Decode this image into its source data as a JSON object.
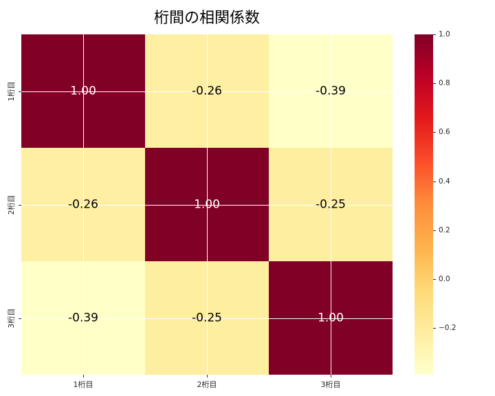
{
  "chart_data": {
    "type": "heatmap",
    "title": "桁間の相関係数",
    "x_categories": [
      "1桁目",
      "2桁目",
      "3桁目"
    ],
    "y_categories": [
      "1桁目",
      "2桁目",
      "3桁目"
    ],
    "matrix": [
      [
        1.0,
        -0.26,
        -0.39
      ],
      [
        -0.26,
        1.0,
        -0.25
      ],
      [
        -0.39,
        -0.25,
        1.0
      ]
    ],
    "cell_labels": [
      [
        "1.00",
        "-0.26",
        "-0.39"
      ],
      [
        "-0.26",
        "1.00",
        "-0.25"
      ],
      [
        "-0.39",
        "-0.25",
        "1.00"
      ]
    ],
    "cell_colors": [
      [
        "#800026",
        "#feefa2",
        "#ffffc8"
      ],
      [
        "#feefa2",
        "#800026",
        "#feeea0"
      ],
      [
        "#ffffc8",
        "#feeea0",
        "#800026"
      ]
    ],
    "cell_text_colors": [
      [
        "#ffffff",
        "#000000",
        "#000000"
      ],
      [
        "#000000",
        "#ffffff",
        "#000000"
      ],
      [
        "#000000",
        "#000000",
        "#ffffff"
      ]
    ],
    "colormap": "YlOrRd",
    "colormap_stops_top_to_bottom": [
      "#800026",
      "#bd0026",
      "#e31a1c",
      "#fc4e2a",
      "#fd8d3c",
      "#feb24c",
      "#fed976",
      "#ffeda0",
      "#ffffcc"
    ],
    "vmin": -0.39,
    "vmax": 1.0,
    "colorbar_ticks": [
      {
        "value": 1.0,
        "label": "1.0"
      },
      {
        "value": 0.8,
        "label": "0.8"
      },
      {
        "value": 0.6,
        "label": "0.6"
      },
      {
        "value": 0.4,
        "label": "0.4"
      },
      {
        "value": 0.2,
        "label": "0.2"
      },
      {
        "value": 0.0,
        "label": "0.0"
      },
      {
        "value": -0.2,
        "label": "−0.2"
      }
    ],
    "grid": true,
    "grid_color": "#ffffff",
    "background": "#ffffff"
  }
}
